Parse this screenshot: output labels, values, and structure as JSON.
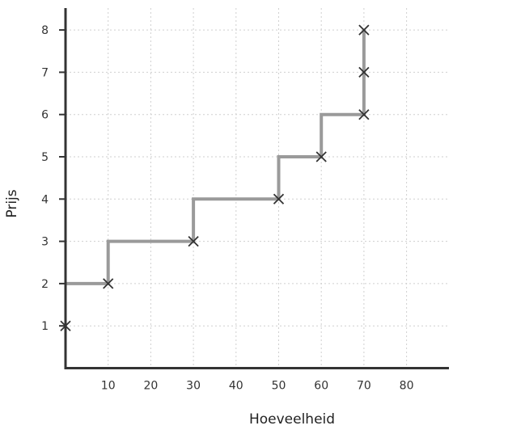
{
  "chart_data": {
    "type": "line",
    "xlabel": "Hoeveelheid",
    "ylabel": "Prijs",
    "xlim": [
      0,
      90
    ],
    "ylim": [
      0,
      8.5
    ],
    "x_ticks": [
      10,
      20,
      30,
      40,
      50,
      60,
      70,
      80
    ],
    "y_ticks": [
      1,
      2,
      3,
      4,
      5,
      6,
      7,
      8
    ],
    "grid": true,
    "step_line": {
      "points": [
        [
          0,
          2
        ],
        [
          10,
          2
        ],
        [
          10,
          3
        ],
        [
          30,
          3
        ],
        [
          30,
          4
        ],
        [
          50,
          4
        ],
        [
          50,
          5
        ],
        [
          60,
          5
        ],
        [
          60,
          6
        ],
        [
          70,
          6
        ],
        [
          70,
          8
        ]
      ]
    },
    "markers": {
      "points": [
        [
          0,
          1
        ],
        [
          10,
          2
        ],
        [
          30,
          3
        ],
        [
          50,
          4
        ],
        [
          60,
          5
        ],
        [
          70,
          6
        ],
        [
          70,
          7
        ],
        [
          70,
          8
        ]
      ]
    },
    "colors": {
      "step": "#9a9a9a",
      "marker": "#333333",
      "axis": "#333333",
      "grid": "#cfcfcf"
    }
  }
}
